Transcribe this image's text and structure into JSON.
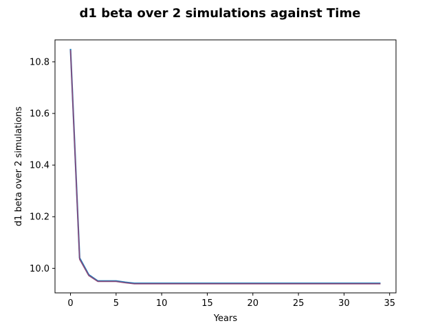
{
  "chart_data": {
    "type": "line",
    "title": "d1 beta over 2 simulations against Time",
    "xlabel": "Years",
    "ylabel": "d1 beta over 2 simulations",
    "xlim": [
      -1.7,
      35.7
    ],
    "ylim": [
      9.905,
      10.885
    ],
    "xticks": [
      0,
      5,
      10,
      15,
      20,
      25,
      30,
      35
    ],
    "yticks": [
      10.0,
      10.2,
      10.4,
      10.6,
      10.8
    ],
    "ytick_labels": [
      "10.0",
      "10.2",
      "10.4",
      "10.6",
      "10.8"
    ],
    "grid": false,
    "series": [
      {
        "color": "#1f77b4",
        "x": [
          0,
          1,
          2,
          3,
          4,
          5,
          6,
          7,
          8,
          9,
          10,
          11,
          12,
          13,
          14,
          15,
          16,
          17,
          18,
          19,
          20,
          21,
          22,
          23,
          24,
          25,
          26,
          27,
          28,
          29,
          30,
          31,
          32,
          33,
          34
        ],
        "values": [
          10.85,
          10.04,
          9.975,
          9.951,
          9.951,
          9.951,
          9.946,
          9.942,
          9.942,
          9.942,
          9.942,
          9.942,
          9.942,
          9.942,
          9.942,
          9.942,
          9.942,
          9.942,
          9.942,
          9.942,
          9.942,
          9.942,
          9.942,
          9.942,
          9.942,
          9.942,
          9.942,
          9.942,
          9.942,
          9.942,
          9.942,
          9.942,
          9.942,
          9.942,
          9.942
        ]
      },
      {
        "color": "#8c4a7a",
        "x": [
          0,
          1,
          2,
          3,
          4,
          5,
          6,
          7,
          8,
          9,
          10,
          11,
          12,
          13,
          14,
          15,
          16,
          17,
          18,
          19,
          20,
          21,
          22,
          23,
          24,
          25,
          26,
          27,
          28,
          29,
          30,
          31,
          32,
          33,
          34
        ],
        "values": [
          10.845,
          10.035,
          9.972,
          9.949,
          9.949,
          9.949,
          9.944,
          9.94,
          9.94,
          9.94,
          9.94,
          9.94,
          9.94,
          9.94,
          9.94,
          9.94,
          9.94,
          9.94,
          9.94,
          9.94,
          9.94,
          9.94,
          9.94,
          9.94,
          9.94,
          9.94,
          9.94,
          9.94,
          9.94,
          9.94,
          9.94,
          9.94,
          9.94,
          9.94,
          9.94
        ]
      }
    ]
  }
}
